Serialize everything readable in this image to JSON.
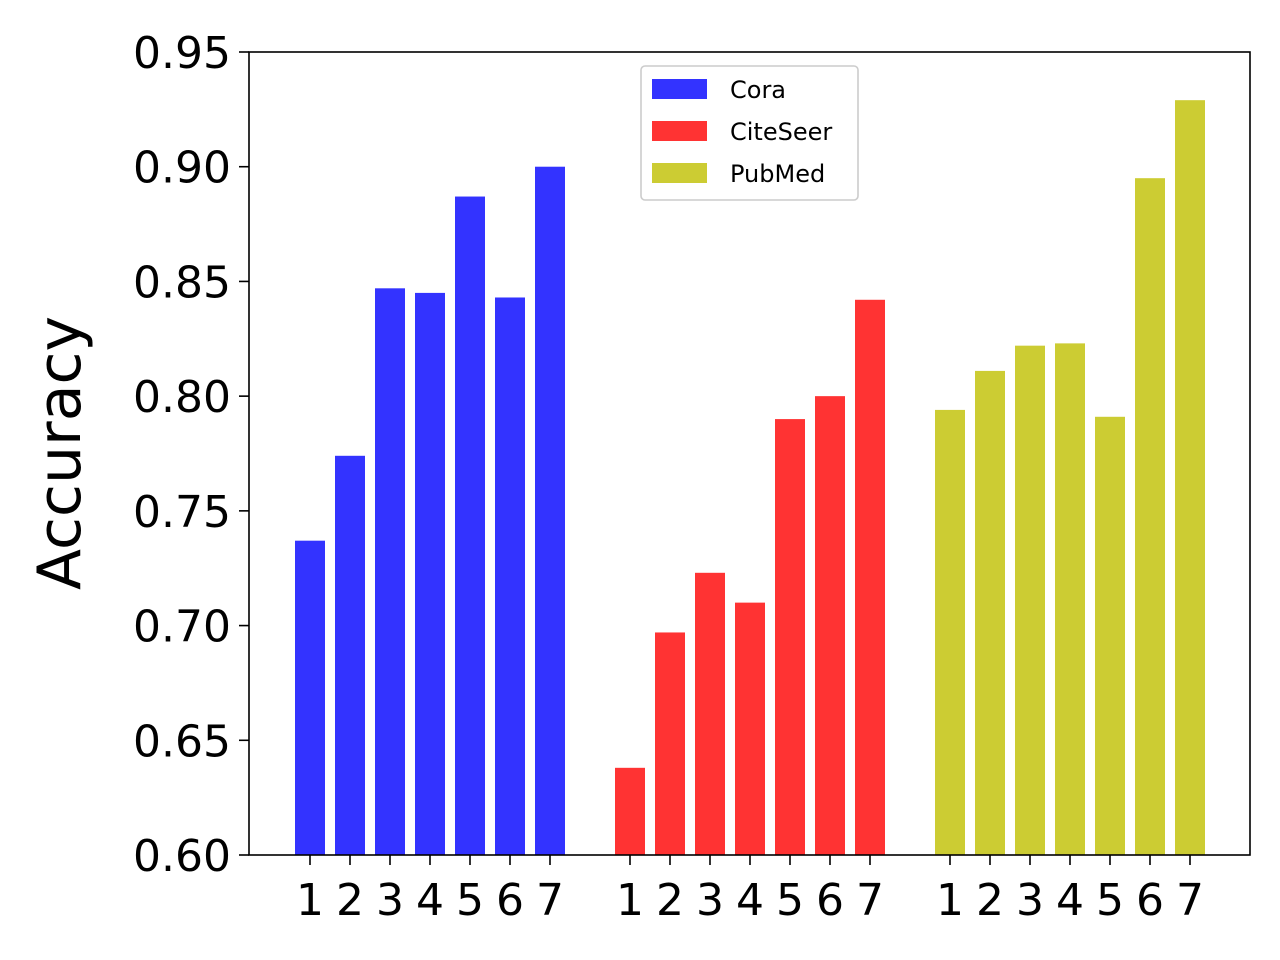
{
  "chart_data": {
    "type": "bar",
    "ylabel": "Accuracy",
    "xlabel": "",
    "title": "",
    "ylim": [
      0.6,
      0.95
    ],
    "yticks": [
      "0.60",
      "0.65",
      "0.70",
      "0.75",
      "0.80",
      "0.85",
      "0.90",
      "0.95"
    ],
    "categories": [
      "1",
      "2",
      "3",
      "4",
      "5",
      "6",
      "7"
    ],
    "legend_position": "top-center",
    "grid": false,
    "series": [
      {
        "name": "Cora",
        "color": "#3333ff",
        "values": [
          0.737,
          0.774,
          0.847,
          0.845,
          0.887,
          0.843,
          0.9
        ]
      },
      {
        "name": "CiteSeer",
        "color": "#ff3333",
        "values": [
          0.638,
          0.697,
          0.723,
          0.71,
          0.79,
          0.8,
          0.842
        ]
      },
      {
        "name": "PubMed",
        "color": "#cccc33",
        "values": [
          0.794,
          0.811,
          0.822,
          0.823,
          0.791,
          0.895,
          0.929
        ]
      }
    ]
  }
}
